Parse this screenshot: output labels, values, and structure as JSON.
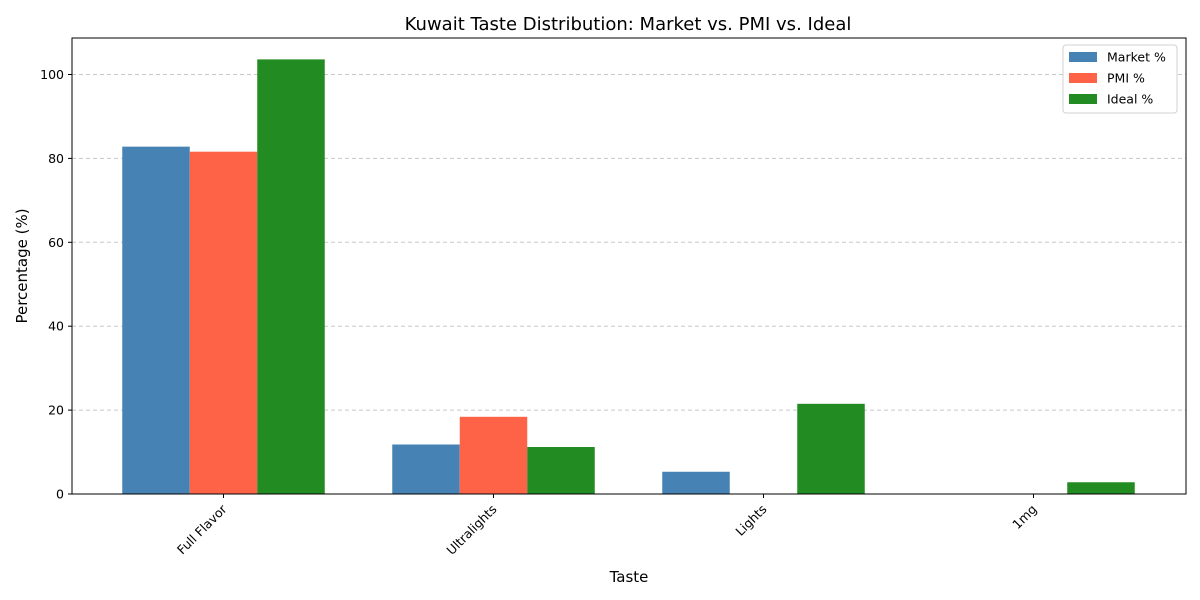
{
  "chart_data": {
    "type": "bar",
    "title": "Kuwait Taste Distribution: Market vs. PMI vs. Ideal",
    "xlabel": "Taste",
    "ylabel": "Percentage (%)",
    "categories": [
      "Full Flavor",
      "Ultralights",
      "Lights",
      "1mg"
    ],
    "series": [
      {
        "name": "Market %",
        "color": "#4682b4",
        "values": [
          82.8,
          11.8,
          5.3,
          0
        ]
      },
      {
        "name": "PMI %",
        "color": "#ff6347",
        "values": [
          81.6,
          18.4,
          0,
          0
        ]
      },
      {
        "name": "Ideal %",
        "color": "#228b22",
        "values": [
          103.6,
          11.2,
          21.5,
          2.8
        ]
      }
    ],
    "ylim": [
      0,
      108.7
    ],
    "yticks": [
      0,
      20,
      40,
      60,
      80,
      100
    ],
    "grid": "y-dashed",
    "legend_position": "top-right",
    "xtick_rotation": 45
  }
}
